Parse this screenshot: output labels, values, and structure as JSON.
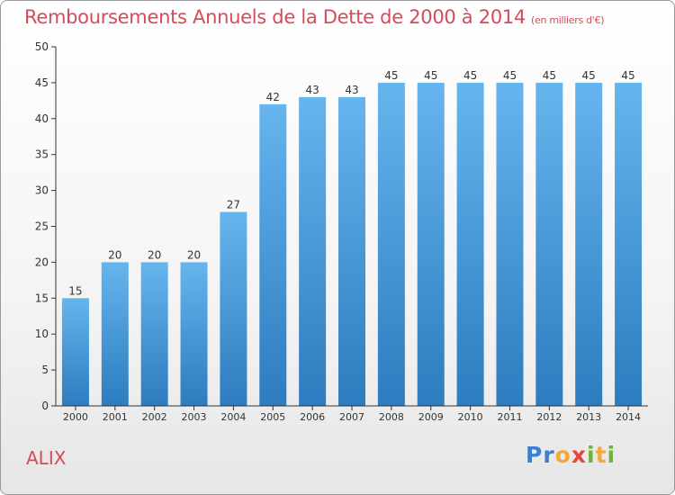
{
  "title": "Remboursements Annuels de la Dette de 2000 à 2014",
  "subtitle": "(en milliers d'€)",
  "city": "ALIX",
  "logo": {
    "letters": [
      "P",
      "r",
      "o",
      "x",
      "i",
      "t",
      "i"
    ],
    "colors": [
      "#3a7fd0",
      "#3a7fd0",
      "#f2a93b",
      "#e8463c",
      "#6cb33f",
      "#f2a93b",
      "#6cb33f"
    ]
  },
  "colors": {
    "bar_light": "#63b2ec",
    "bar_dark": "#2f7fc1",
    "title": "#d64a5a"
  },
  "chart_data": {
    "type": "bar",
    "categories": [
      "2000",
      "2001",
      "2002",
      "2003",
      "2004",
      "2005",
      "2006",
      "2007",
      "2008",
      "2009",
      "2010",
      "2011",
      "2012",
      "2013",
      "2014"
    ],
    "values": [
      15,
      20,
      20,
      20,
      27,
      42,
      43,
      43,
      45,
      45,
      45,
      45,
      45,
      45,
      45
    ],
    "title": "Remboursements Annuels de la Dette de 2000 à 2014",
    "subtitle": "(en milliers d'€)",
    "ylim": [
      0,
      50
    ],
    "yticks": [
      0,
      5,
      10,
      15,
      20,
      25,
      30,
      35,
      40,
      45,
      50
    ],
    "grid": false,
    "data_labels": true
  }
}
